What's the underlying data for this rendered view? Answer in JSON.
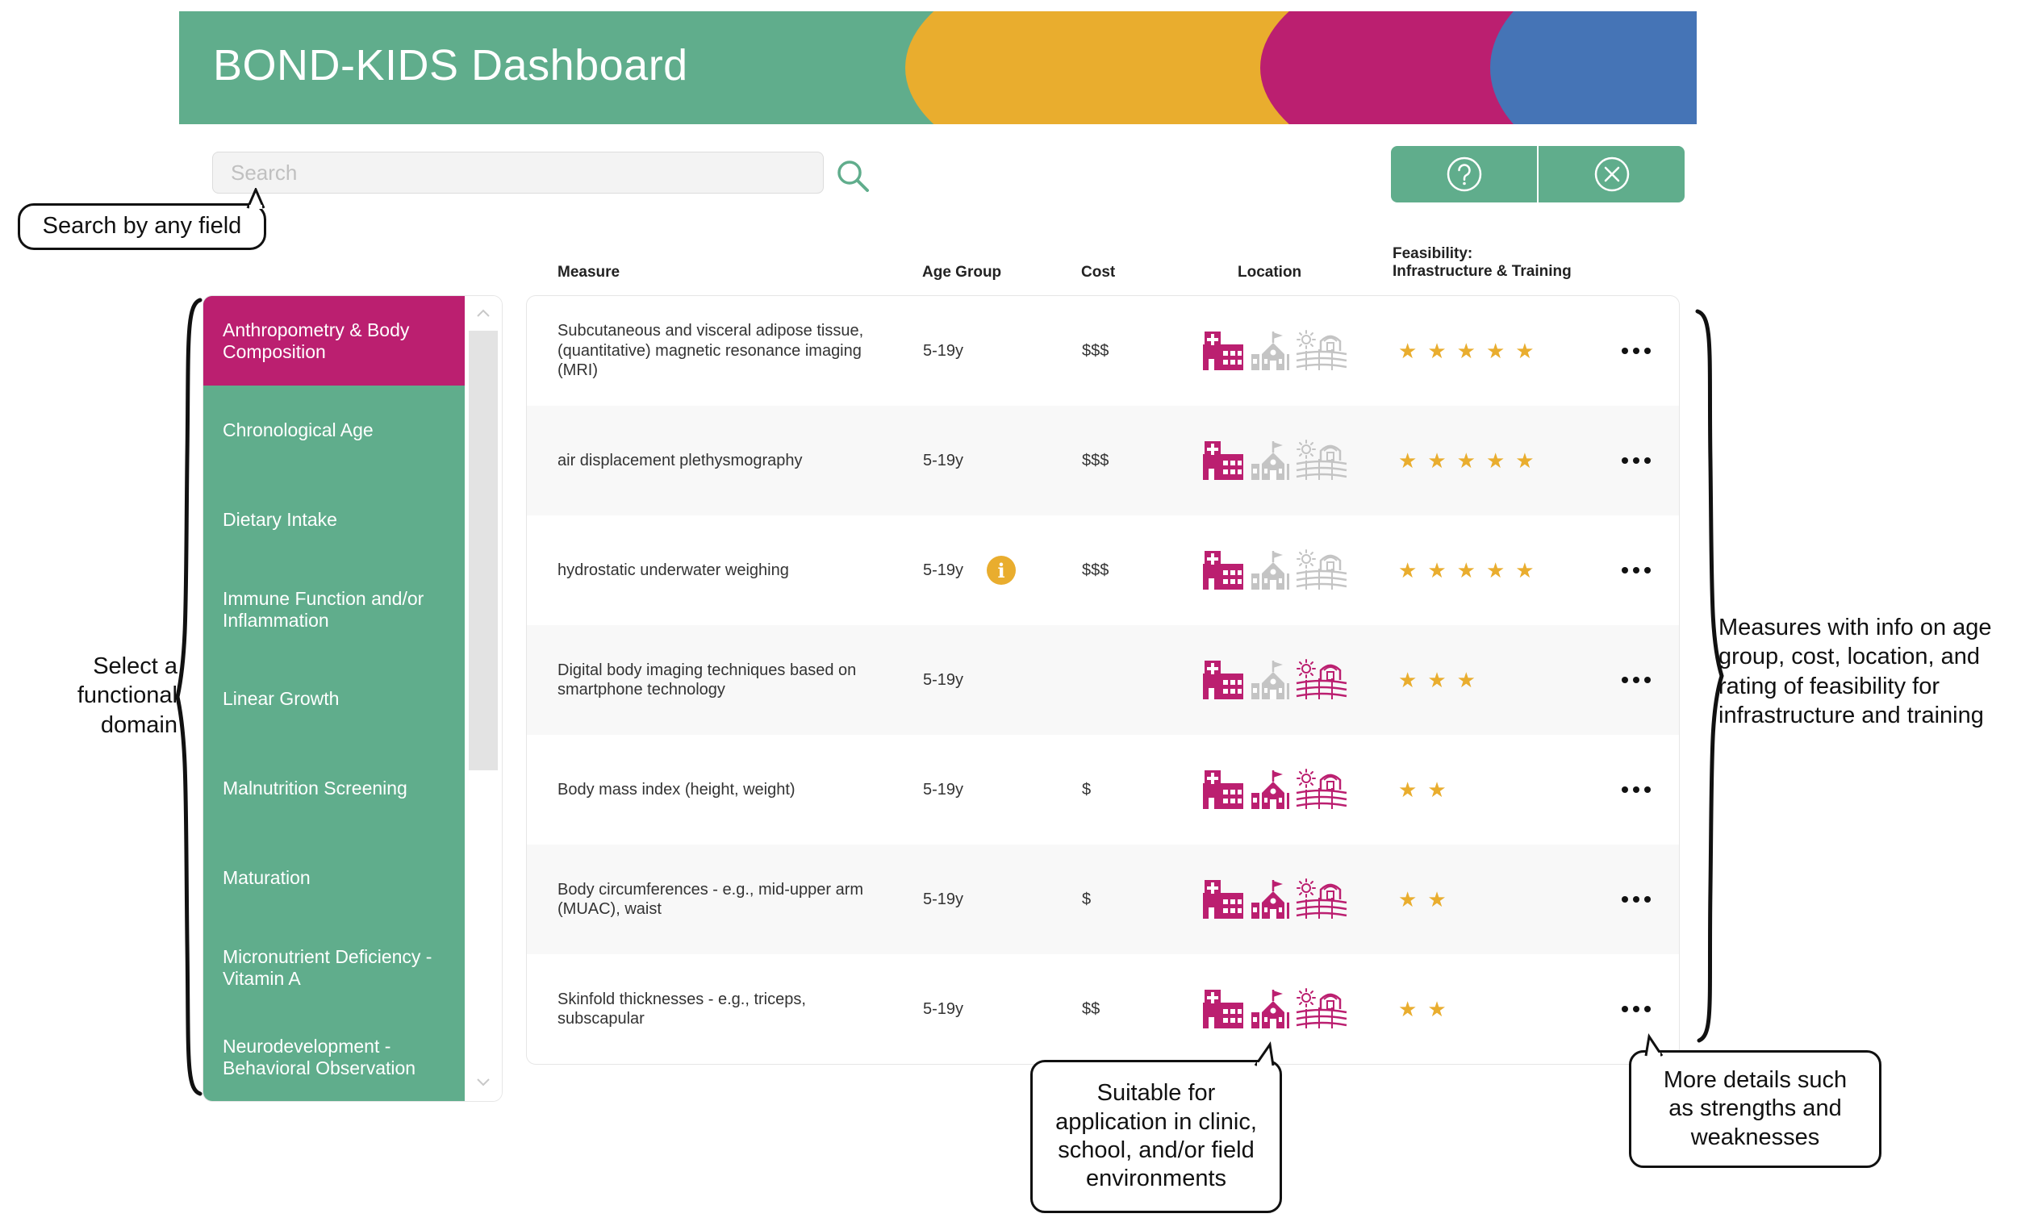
{
  "banner": {
    "title": "BOND-KIDS Dashboard"
  },
  "search": {
    "placeholder": "Search"
  },
  "annotations": {
    "search_note": "Search by any field",
    "domain_note": [
      "Select a",
      "functional",
      "domain"
    ],
    "measures_note": [
      "Measures with info on age",
      "group, cost, location, and",
      "rating of feasibility for",
      "infrastructure and training"
    ],
    "location_note": [
      "Suitable for",
      "application in clinic,",
      "school, and/or field",
      "environments"
    ],
    "details_note": [
      "More details such",
      "as strengths and",
      "weaknesses"
    ]
  },
  "columns": {
    "measure": "Measure",
    "age_group": "Age Group",
    "cost": "Cost",
    "location": "Location",
    "feasibility_line1": "Feasibility:",
    "feasibility_line2": "Infrastructure & Training"
  },
  "sidebar": {
    "items": [
      {
        "label": "Anthropometry & Body Composition",
        "active": true
      },
      {
        "label": "Chronological Age",
        "active": false
      },
      {
        "label": "Dietary Intake",
        "active": false
      },
      {
        "label": "Immune Function and/or Inflammation",
        "active": false
      },
      {
        "label": "Linear Growth",
        "active": false
      },
      {
        "label": "Malnutrition Screening",
        "active": false
      },
      {
        "label": "Maturation",
        "active": false
      },
      {
        "label": "Micronutrient Deficiency - Vitamin A",
        "active": false
      },
      {
        "label": "Neurodevelopment - Behavioral Observation",
        "active": false
      }
    ]
  },
  "rows": [
    {
      "measure": "Subcutaneous and visceral adipose tissue, (quantitative) magnetic resonance imaging (MRI)",
      "age": "5-19y",
      "info": false,
      "cost": "$$$",
      "clinic": true,
      "school": false,
      "field": false,
      "stars": 5
    },
    {
      "measure": "air displacement plethysmography",
      "age": "5-19y",
      "info": false,
      "cost": "$$$",
      "clinic": true,
      "school": false,
      "field": false,
      "stars": 5
    },
    {
      "measure": "hydrostatic underwater weighing",
      "age": "5-19y",
      "info": true,
      "cost": "$$$",
      "clinic": true,
      "school": false,
      "field": false,
      "stars": 5
    },
    {
      "measure": "Digital body imaging techniques based on smartphone technology",
      "age": "5-19y",
      "info": false,
      "cost": "",
      "clinic": true,
      "school": false,
      "field": true,
      "stars": 3
    },
    {
      "measure": "Body mass index (height, weight)",
      "age": "5-19y",
      "info": false,
      "cost": "$",
      "clinic": true,
      "school": true,
      "field": true,
      "stars": 2
    },
    {
      "measure": "Body circumferences - e.g., mid-upper arm (MUAC), waist",
      "age": "5-19y",
      "info": false,
      "cost": "$",
      "clinic": true,
      "school": true,
      "field": true,
      "stars": 2
    },
    {
      "measure": "Skinfold thicknesses - e.g., triceps, subscapular",
      "age": "5-19y",
      "info": false,
      "cost": "$$",
      "clinic": true,
      "school": true,
      "field": true,
      "stars": 2
    }
  ],
  "colors": {
    "green": "#60ad8c",
    "magenta": "#bb1f70",
    "orange": "#e9ad2e",
    "blue": "#4574b6",
    "inactive_icon": "#c4c4c4"
  },
  "icons": {
    "search": "search-icon",
    "help": "question-circle-icon",
    "close": "close-circle-icon",
    "clinic": "hospital-icon",
    "school": "school-icon",
    "field": "farm-field-icon",
    "more": "more-dots-icon",
    "info": "info-icon"
  }
}
